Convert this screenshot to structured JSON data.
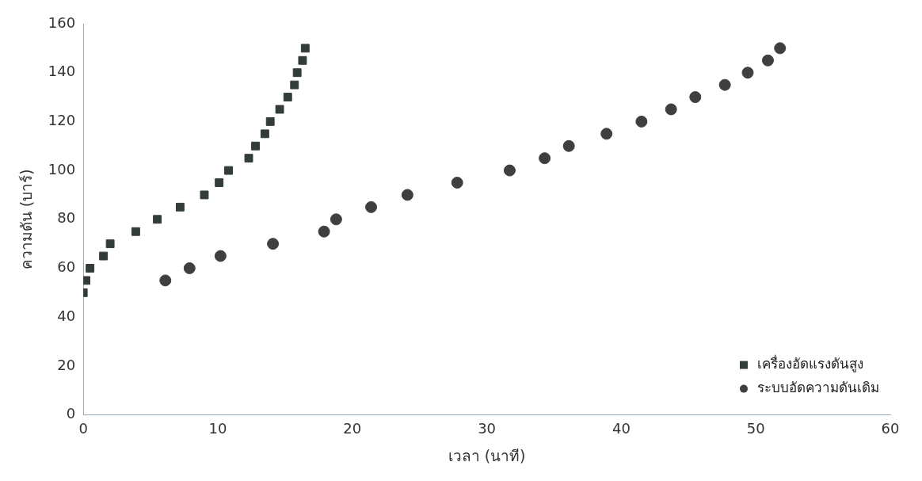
{
  "chart_data": {
    "type": "scatter",
    "x_label": "เวลา (นาที)",
    "y_label": "ความดัน (บาร์)",
    "xlim": [
      0,
      60
    ],
    "xticks": [
      0,
      10,
      20,
      30,
      40,
      50,
      60
    ],
    "ylim": [
      0,
      160
    ],
    "yticks": [
      0,
      20,
      40,
      60,
      80,
      100,
      120,
      140,
      160
    ],
    "grid": false,
    "legend": "bottom-right",
    "series": [
      {
        "name": "เครื่องอัดแรงดันสูง",
        "color": "#333d38",
        "marker": "square",
        "x": [
          0,
          0.2,
          0.5,
          1.5,
          2,
          3.9,
          5.5,
          7.2,
          9,
          10.1,
          10.8,
          12.3,
          12.8,
          13.5,
          13.9,
          14.6,
          15.2,
          15.7,
          15.9,
          16.3,
          16.5
        ],
        "values": [
          50,
          55,
          60,
          65,
          70,
          75,
          80,
          85,
          90,
          95,
          100,
          105,
          110,
          115,
          120,
          125,
          130,
          135,
          140,
          145,
          150
        ]
      },
      {
        "name": "ระบบอัดความดันเดิม",
        "color": "#3f3f3f",
        "marker": "circle",
        "x": [
          6.1,
          7.9,
          10.2,
          14.1,
          17.9,
          18.8,
          21.4,
          24.1,
          27.8,
          31.7,
          34.3,
          36.1,
          38.9,
          41.5,
          43.7,
          45.5,
          47.7,
          49.4,
          50.9,
          51.8
        ],
        "values": [
          55,
          60,
          65,
          70,
          75,
          80,
          85,
          90,
          95,
          100,
          105,
          110,
          115,
          120,
          125,
          130,
          135,
          140,
          145,
          150
        ]
      }
    ]
  }
}
